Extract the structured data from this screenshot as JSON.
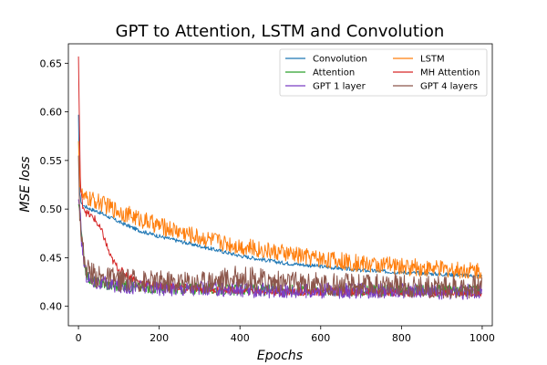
{
  "chart_data": {
    "type": "line",
    "title": "GPT to Attention, LSTM and Convolution",
    "xlabel": "Epochs",
    "ylabel": "MSE loss",
    "xlim": [
      -25,
      1025
    ],
    "ylim": [
      0.38,
      0.67
    ],
    "x_ticks": [
      0,
      200,
      400,
      600,
      800,
      1000
    ],
    "y_ticks": [
      0.4,
      0.45,
      0.5,
      0.55,
      0.6,
      0.65
    ],
    "x_tick_labels": [
      "0",
      "200",
      "400",
      "600",
      "800",
      "1000"
    ],
    "y_tick_labels": [
      "0.40",
      "0.45",
      "0.50",
      "0.55",
      "0.60",
      "0.65"
    ],
    "legend": {
      "location": "upper right",
      "columns": 2
    },
    "series": [
      {
        "name": "Convolution",
        "color": "#1f77b4",
        "noise": 0.002,
        "x": [
          0,
          3,
          8,
          15,
          30,
          50,
          100,
          150,
          200,
          300,
          400,
          500,
          600,
          700,
          800,
          900,
          1000
        ],
        "y": [
          0.597,
          0.515,
          0.505,
          0.503,
          0.5,
          0.497,
          0.487,
          0.478,
          0.472,
          0.462,
          0.452,
          0.445,
          0.441,
          0.437,
          0.435,
          0.433,
          0.431
        ]
      },
      {
        "name": "LSTM",
        "color": "#ff7f0e",
        "noise": 0.009,
        "x": [
          0,
          3,
          8,
          15,
          30,
          50,
          100,
          150,
          200,
          300,
          400,
          500,
          600,
          700,
          800,
          900,
          1000
        ],
        "y": [
          0.57,
          0.53,
          0.515,
          0.51,
          0.51,
          0.507,
          0.498,
          0.49,
          0.483,
          0.471,
          0.462,
          0.455,
          0.449,
          0.444,
          0.441,
          0.438,
          0.437
        ]
      },
      {
        "name": "Attention",
        "color": "#2ca02c",
        "noise": 0.006,
        "x": [
          0,
          3,
          8,
          15,
          20,
          30,
          50,
          100,
          200,
          300,
          400,
          500,
          600,
          700,
          800,
          900,
          1000
        ],
        "y": [
          0.505,
          0.5,
          0.47,
          0.445,
          0.433,
          0.427,
          0.424,
          0.421,
          0.419,
          0.418,
          0.417,
          0.417,
          0.417,
          0.416,
          0.416,
          0.416,
          0.416
        ]
      },
      {
        "name": "MH Attention",
        "color": "#d62728",
        "noise": 0.004,
        "x": [
          0,
          2,
          5,
          10,
          20,
          40,
          60,
          80,
          100,
          150,
          200,
          300,
          400,
          500,
          600,
          700,
          800,
          900,
          1000
        ],
        "y": [
          0.657,
          0.6,
          0.52,
          0.505,
          0.496,
          0.49,
          0.475,
          0.45,
          0.438,
          0.425,
          0.421,
          0.418,
          0.416,
          0.415,
          0.415,
          0.415,
          0.414,
          0.414,
          0.414
        ]
      },
      {
        "name": "GPT 1 layer",
        "color": "#7b3fc4",
        "noise": 0.008,
        "x": [
          0,
          3,
          8,
          15,
          20,
          30,
          50,
          100,
          200,
          300,
          400,
          500,
          600,
          700,
          800,
          900,
          1000
        ],
        "y": [
          0.51,
          0.5,
          0.465,
          0.44,
          0.432,
          0.427,
          0.424,
          0.421,
          0.419,
          0.418,
          0.417,
          0.416,
          0.416,
          0.416,
          0.416,
          0.415,
          0.415
        ]
      },
      {
        "name": "GPT 4 layers",
        "color": "#8c564b",
        "noise": 0.012,
        "x": [
          0,
          3,
          8,
          15,
          20,
          30,
          50,
          100,
          200,
          300,
          400,
          500,
          600,
          700,
          800,
          900,
          1000
        ],
        "y": [
          0.555,
          0.5,
          0.47,
          0.445,
          0.44,
          0.435,
          0.43,
          0.427,
          0.425,
          0.425,
          0.43,
          0.425,
          0.423,
          0.422,
          0.421,
          0.42,
          0.42
        ]
      }
    ]
  }
}
